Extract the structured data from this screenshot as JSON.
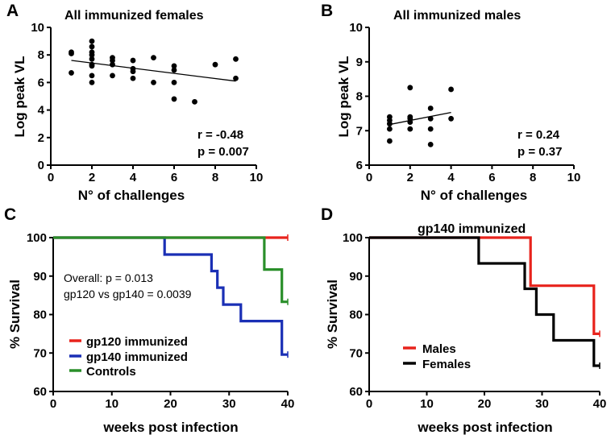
{
  "colors": {
    "red": "#e8231c",
    "blue": "#1a2fb5",
    "green": "#2a8f2a",
    "black": "#000000"
  },
  "chart_data": [
    {
      "panel": "A",
      "type": "scatter",
      "title": "All  immunized females",
      "xlabel": "N° of challenges",
      "ylabel": "Log peak VL",
      "xlim": [
        0,
        10
      ],
      "ylim": [
        0,
        10
      ],
      "xticks": [
        "0",
        "2",
        "4",
        "6",
        "8",
        "10"
      ],
      "yticks": [
        "0",
        "2",
        "4",
        "6",
        "8",
        "10"
      ],
      "points": [
        [
          1,
          8.1
        ],
        [
          1,
          8.2
        ],
        [
          1,
          6.7
        ],
        [
          2,
          9.0
        ],
        [
          2,
          8.6
        ],
        [
          2,
          8.2
        ],
        [
          2,
          8.0
        ],
        [
          2,
          7.7
        ],
        [
          2,
          7.3
        ],
        [
          2,
          7.2
        ],
        [
          2,
          6.5
        ],
        [
          2,
          6.0
        ],
        [
          3,
          7.8
        ],
        [
          3,
          7.6
        ],
        [
          3,
          7.3
        ],
        [
          3,
          6.5
        ],
        [
          4,
          7.6
        ],
        [
          4,
          7.0
        ],
        [
          4,
          6.8
        ],
        [
          4,
          6.3
        ],
        [
          5,
          7.8
        ],
        [
          5,
          6.0
        ],
        [
          6,
          7.2
        ],
        [
          6,
          6.9
        ],
        [
          6,
          6.0
        ],
        [
          6,
          4.8
        ],
        [
          7,
          4.6
        ],
        [
          8,
          7.3
        ],
        [
          9,
          7.7
        ],
        [
          9,
          6.3
        ]
      ],
      "fit": {
        "x": [
          1,
          9
        ],
        "y": [
          7.6,
          6.1
        ]
      },
      "r_text": "r = -0.48",
      "p_text": "p = 0.007"
    },
    {
      "panel": "B",
      "type": "scatter",
      "title": "All  immunized males",
      "xlabel": "N° of challenges",
      "ylabel": "Log peak VL",
      "xlim": [
        0,
        10
      ],
      "ylim": [
        6,
        10
      ],
      "xticks": [
        "0",
        "2",
        "4",
        "6",
        "8",
        "10"
      ],
      "yticks": [
        "6",
        "7",
        "8",
        "9",
        "10"
      ],
      "points": [
        [
          1,
          7.4
        ],
        [
          1,
          7.3
        ],
        [
          1,
          7.2
        ],
        [
          1,
          7.05
        ],
        [
          1,
          6.7
        ],
        [
          2,
          8.25
        ],
        [
          2,
          7.4
        ],
        [
          2,
          7.35
        ],
        [
          2,
          7.25
        ],
        [
          2,
          7.05
        ],
        [
          3,
          7.65
        ],
        [
          3,
          7.35
        ],
        [
          3,
          7.05
        ],
        [
          3,
          6.6
        ],
        [
          4,
          8.2
        ],
        [
          4,
          7.35
        ]
      ],
      "fit": {
        "x": [
          1,
          4
        ],
        "y": [
          7.18,
          7.53
        ]
      },
      "r_text": "r = 0.24",
      "p_text": "p = 0.37"
    },
    {
      "panel": "C",
      "type": "line",
      "subtype": "kaplan-meier",
      "title": "",
      "xlabel": "weeks post infection",
      "ylabel": "% Survival",
      "xlim": [
        0,
        40
      ],
      "ylim": [
        60,
        100
      ],
      "xticks": [
        "0",
        "10",
        "20",
        "30",
        "40"
      ],
      "yticks": [
        "60",
        "70",
        "80",
        "90",
        "100"
      ],
      "series": [
        {
          "name": "gp120 immunized",
          "color": "#e8231c",
          "steps": [
            [
              0,
              100
            ],
            [
              40,
              100
            ]
          ]
        },
        {
          "name": "gp140 immunized",
          "color": "#1a2fb5",
          "steps": [
            [
              0,
              100
            ],
            [
              19,
              100
            ],
            [
              19,
              95.6
            ],
            [
              27,
              95.6
            ],
            [
              27,
              91.3
            ],
            [
              28,
              91.3
            ],
            [
              28,
              87.0
            ],
            [
              29,
              87.0
            ],
            [
              29,
              82.6
            ],
            [
              32,
              82.6
            ],
            [
              32,
              78.3
            ],
            [
              39,
              78.3
            ],
            [
              39,
              69.6
            ],
            [
              40,
              69.6
            ]
          ]
        },
        {
          "name": "Controls",
          "color": "#2a8f2a",
          "steps": [
            [
              0,
              100
            ],
            [
              36,
              100
            ],
            [
              36,
              91.7
            ],
            [
              39,
              91.7
            ],
            [
              39,
              83.3
            ],
            [
              40,
              83.3
            ]
          ]
        }
      ],
      "annotations": [
        "Overall: p = 0.013",
        "gp120 vs gp140 = 0.0039"
      ],
      "legend_position": "bottom-left"
    },
    {
      "panel": "D",
      "type": "line",
      "subtype": "kaplan-meier",
      "title": "gp140 immunized",
      "xlabel": "weeks post infection",
      "ylabel": "% Survival",
      "xlim": [
        0,
        40
      ],
      "ylim": [
        60,
        100
      ],
      "xticks": [
        "0",
        "10",
        "20",
        "30",
        "40"
      ],
      "yticks": [
        "60",
        "70",
        "80",
        "90",
        "100"
      ],
      "series": [
        {
          "name": "Males",
          "color": "#e8231c",
          "steps": [
            [
              0,
              100
            ],
            [
              28,
              100
            ],
            [
              28,
              87.5
            ],
            [
              39,
              87.5
            ],
            [
              39,
              75
            ],
            [
              40,
              75
            ]
          ]
        },
        {
          "name": "Females",
          "color": "#000000",
          "steps": [
            [
              0,
              100
            ],
            [
              19,
              100
            ],
            [
              19,
              93.3
            ],
            [
              27,
              93.3
            ],
            [
              27,
              86.7
            ],
            [
              29,
              86.7
            ],
            [
              29,
              80
            ],
            [
              32,
              80
            ],
            [
              32,
              73.3
            ],
            [
              39,
              73.3
            ],
            [
              39,
              66.7
            ],
            [
              40,
              66.7
            ]
          ]
        }
      ],
      "legend_position": "bottom-left"
    }
  ]
}
